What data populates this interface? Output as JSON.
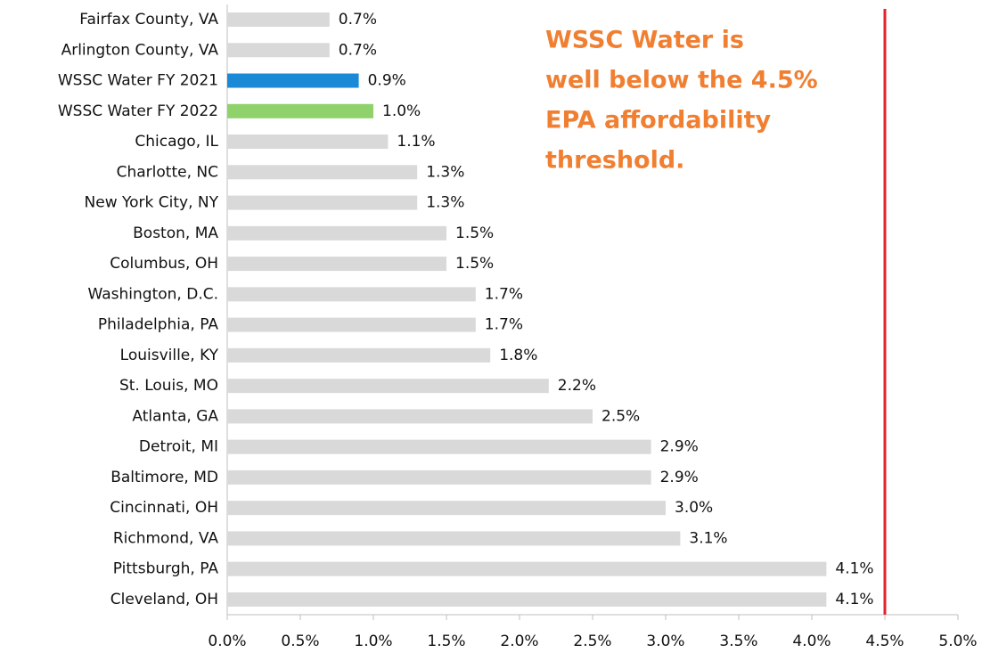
{
  "chart_data": {
    "type": "bar",
    "orientation": "horizontal",
    "categories": [
      "Fairfax County, VA",
      "Arlington County, VA",
      "WSSC Water FY 2021",
      "WSSC Water FY 2022",
      "Chicago, IL",
      "Charlotte, NC",
      "New York City, NY",
      "Boston, MA",
      "Columbus, OH",
      "Washington, D.C.",
      "Philadelphia, PA",
      "Louisville, KY",
      "St. Louis, MO",
      "Atlanta, GA",
      "Detroit, MI",
      "Baltimore, MD",
      "Cincinnati, OH",
      "Richmond, VA",
      "Pittsburgh, PA",
      "Cleveland, OH"
    ],
    "values": [
      0.7,
      0.7,
      0.9,
      1.0,
      1.1,
      1.3,
      1.3,
      1.5,
      1.5,
      1.7,
      1.7,
      1.8,
      2.2,
      2.5,
      2.9,
      2.9,
      3.0,
      3.1,
      4.1,
      4.1
    ],
    "value_labels": [
      "0.7%",
      "0.7%",
      "0.9%",
      "1.0%",
      "1.1%",
      "1.3%",
      "1.3%",
      "1.5%",
      "1.5%",
      "1.7%",
      "1.7%",
      "1.8%",
      "2.2%",
      "2.5%",
      "2.9%",
      "2.9%",
      "3.0%",
      "3.1%",
      "4.1%",
      "4.1%"
    ],
    "colors": [
      "#d9d9d9",
      "#d9d9d9",
      "#1b8ad6",
      "#8fd16b",
      "#d9d9d9",
      "#d9d9d9",
      "#d9d9d9",
      "#d9d9d9",
      "#d9d9d9",
      "#d9d9d9",
      "#d9d9d9",
      "#d9d9d9",
      "#d9d9d9",
      "#d9d9d9",
      "#d9d9d9",
      "#d9d9d9",
      "#d9d9d9",
      "#d9d9d9",
      "#d9d9d9",
      "#d9d9d9"
    ],
    "xlim": [
      0,
      5
    ],
    "xticks": [
      {
        "value": 0,
        "label": "0.0%"
      },
      {
        "value": 0.5,
        "label": "0.5%"
      },
      {
        "value": 1,
        "label": "1.0%"
      },
      {
        "value": 1.5,
        "label": "1.5%"
      },
      {
        "value": 2,
        "label": "2.0%"
      },
      {
        "value": 2.5,
        "label": "2.5%"
      },
      {
        "value": 3,
        "label": "3.0%"
      },
      {
        "value": 3.5,
        "label": "3.5%"
      },
      {
        "value": 4,
        "label": "4.0%"
      },
      {
        "value": 4.5,
        "label": "4.5%"
      },
      {
        "value": 5,
        "label": "5.0%"
      }
    ],
    "threshold": 4.5,
    "threshold_color": "#e3232c",
    "annotation": [
      "WSSC Water is",
      "well below the 4.5%",
      "EPA affordability",
      "threshold."
    ]
  }
}
